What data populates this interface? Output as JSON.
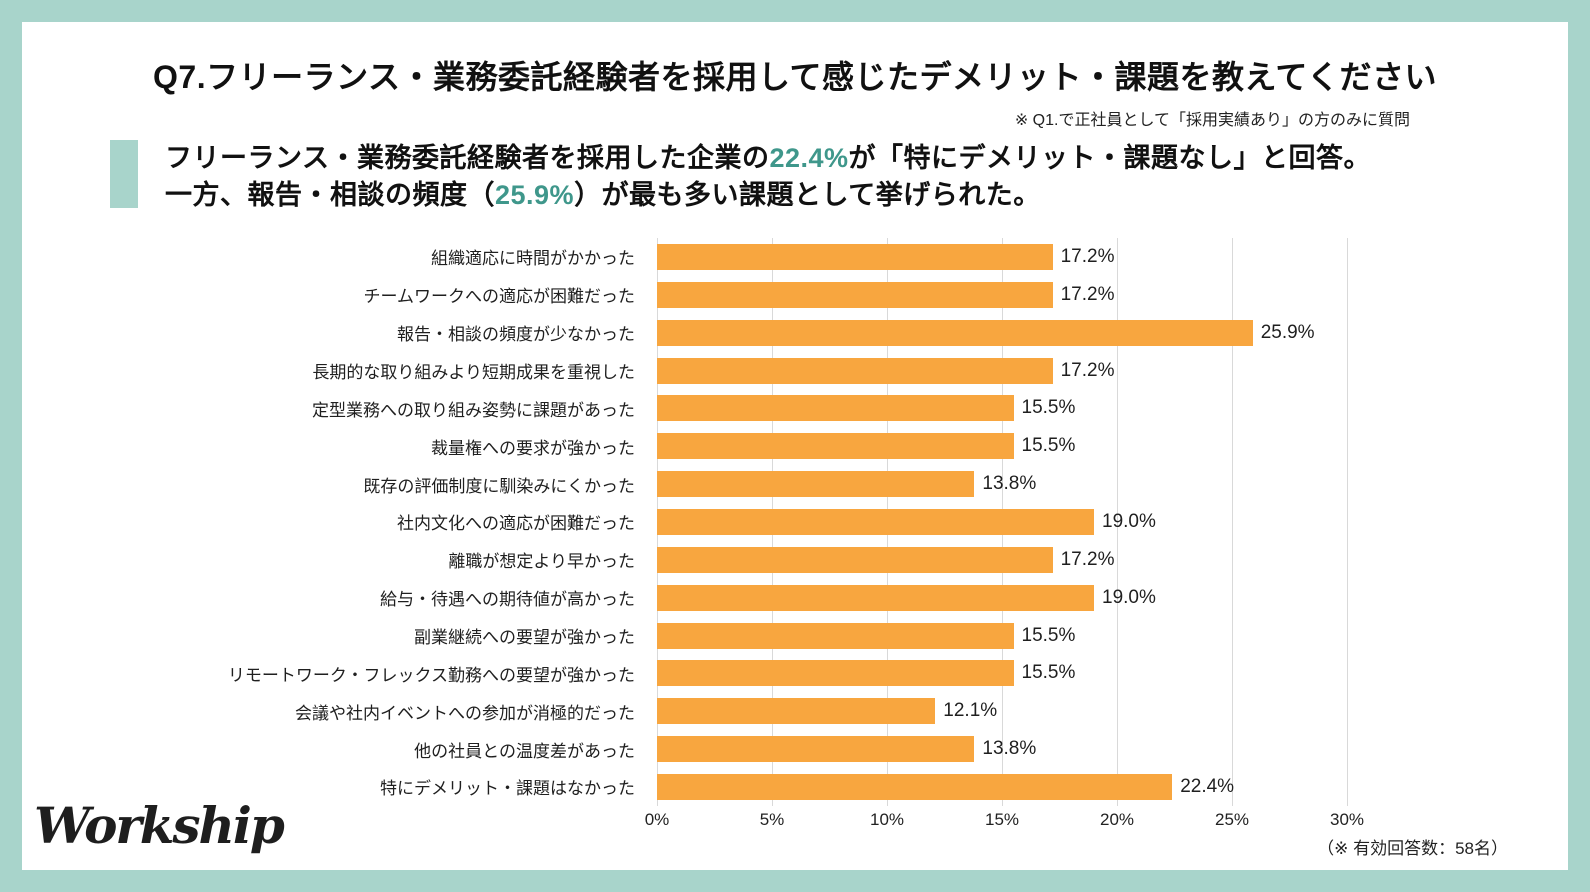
{
  "header": {
    "title": "Q7.フリーランス・業務委託経験者を採用して感じたデメリット・課題を教えてください",
    "note": "※ Q1.で正社員として「採用実績あり」の方のみに質問"
  },
  "summary": {
    "line1_before": "フリーランス・業務委託経験者を採用した企業の",
    "line1_highlight": "22.4%",
    "line1_after": "が「特にデメリット・課題なし」と回答。",
    "line2_before": "一方、報告・相談の頻度（",
    "line2_highlight": "25.9%",
    "line2_after": "）が最も多い課題として挙げられた。"
  },
  "chart_data": {
    "type": "bar",
    "orientation": "horizontal",
    "categories": [
      "組織適応に時間がかかった",
      "チームワークへの適応が困難だった",
      "報告・相談の頻度が少なかった",
      "長期的な取り組みより短期成果を重視した",
      "定型業務への取り組み姿勢に課題があった",
      "裁量権への要求が強かった",
      "既存の評価制度に馴染みにくかった",
      "社内文化への適応が困難だった",
      "離職が想定より早かった",
      "給与・待遇への期待値が高かった",
      "副業継続への要望が強かった",
      "リモートワーク・フレックス勤務への要望が強かった",
      "会議や社内イベントへの参加が消極的だった",
      "他の社員との温度差があった",
      "特にデメリット・課題はなかった"
    ],
    "values": [
      17.2,
      17.2,
      25.9,
      17.2,
      15.5,
      15.5,
      13.8,
      19.0,
      17.2,
      19.0,
      15.5,
      15.5,
      12.1,
      13.8,
      22.4
    ],
    "value_labels": [
      "17.2%",
      "17.2%",
      "25.9%",
      "17.2%",
      "15.5%",
      "15.5%",
      "13.8%",
      "19.0%",
      "17.2%",
      "19.0%",
      "15.5%",
      "15.5%",
      "12.1%",
      "13.8%",
      "22.4%"
    ],
    "xlim": [
      0,
      30
    ],
    "x_tick_step": 5,
    "x_tick_labels": [
      "0%",
      "5%",
      "10%",
      "15%",
      "20%",
      "25%",
      "30%"
    ],
    "grid": true,
    "legend": false
  },
  "footer": {
    "logo": "Workship",
    "note": "（※ 有効回答数：58名）"
  },
  "colors": {
    "frame_mint": "#a8d4cb",
    "bar_orange": "#f8a63f",
    "highlight_teal": "#3f978b",
    "grid_gray": "#d9d9d9",
    "text_ink": "#1a1a1a"
  }
}
